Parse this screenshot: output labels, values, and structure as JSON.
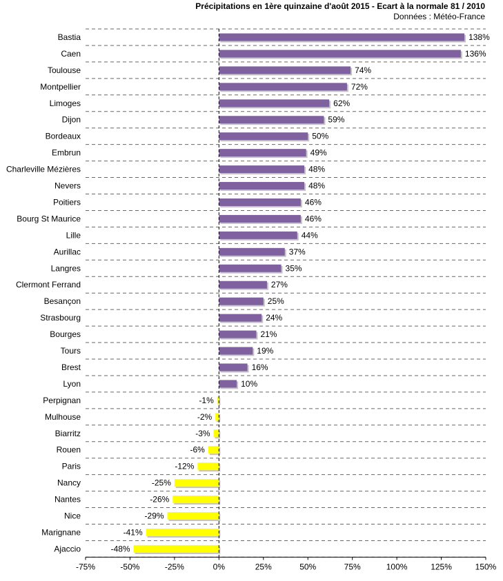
{
  "chart_data": {
    "type": "bar",
    "orientation": "horizontal",
    "title": "Précipitations en 1ère quinzaine  d'août 2015 - Ecart à la normale 81 / 2010",
    "subtitle": "Données : Météo-France",
    "categories": [
      "Bastia",
      "Caen",
      "Toulouse",
      "Montpellier",
      "Limoges",
      "Dijon",
      "Bordeaux",
      "Embrun",
      "Charleville Mézières",
      "Nevers",
      "Poitiers",
      "Bourg St Maurice",
      "Lille",
      "Aurillac",
      "Langres",
      "Clermont Ferrand",
      "Besançon",
      "Strasbourg",
      "Bourges",
      "Tours",
      "Brest",
      "Lyon",
      "Perpignan",
      "Mulhouse",
      "Biarritz",
      "Rouen",
      "Paris",
      "Nancy",
      "Nantes",
      "Nice",
      "Marignane",
      "Ajaccio"
    ],
    "values": [
      138,
      136,
      74,
      72,
      62,
      59,
      50,
      49,
      48,
      48,
      46,
      46,
      44,
      37,
      35,
      27,
      25,
      24,
      21,
      19,
      16,
      10,
      -1,
      -2,
      -3,
      -6,
      -12,
      -25,
      -26,
      -29,
      -41,
      -48
    ],
    "value_labels": [
      "138%",
      "136%",
      "74%",
      "72%",
      "62%",
      "59%",
      "50%",
      "49%",
      "48%",
      "48%",
      "46%",
      "46%",
      "44%",
      "37%",
      "35%",
      "27%",
      "25%",
      "24%",
      "21%",
      "19%",
      "16%",
      "10%",
      "-1%",
      "-2%",
      "-3%",
      "-6%",
      "-12%",
      "-25%",
      "-26%",
      "-29%",
      "-41%",
      "-48%"
    ],
    "xlim": [
      -75,
      150
    ],
    "xticks": [
      -75,
      -50,
      -25,
      0,
      25,
      50,
      75,
      100,
      125,
      150
    ],
    "xtick_labels": [
      "-75%",
      "-50%",
      "-25%",
      "0%",
      "25%",
      "50%",
      "75%",
      "100%",
      "125%",
      "150%"
    ],
    "xlabel": "",
    "ylabel": "",
    "grid": "horizontal dashed",
    "colors": {
      "positive": "#7f619f",
      "negative": "#ffff00",
      "shadow": "#c4c4c4",
      "grid": "#666666",
      "axis": "#000000"
    }
  }
}
